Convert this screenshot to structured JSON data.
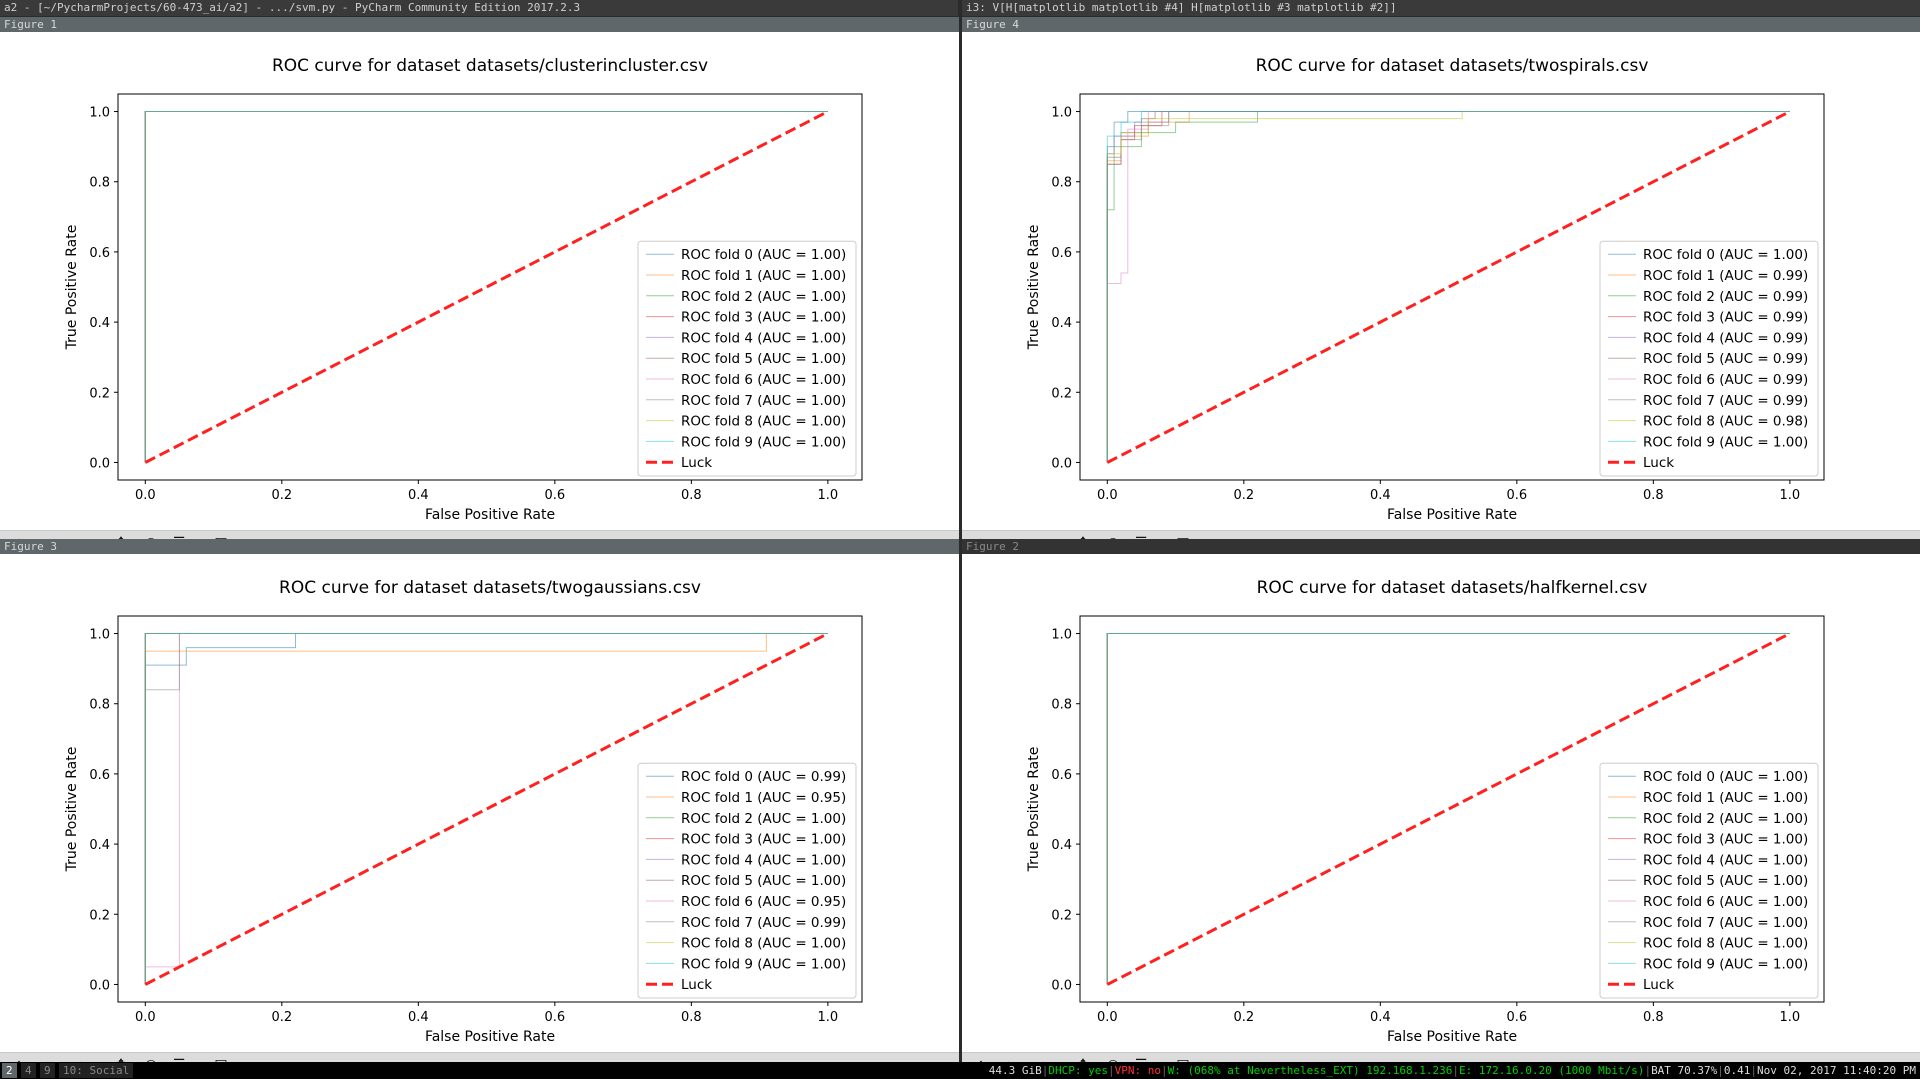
{
  "titlebar_left": "a2 - [~/PycharmProjects/60-473_ai/a2] - .../svm.py - PyCharm Community Edition 2017.2.3",
  "titlebar_right": "i3: V[H[matplotlib matplotlib #4] H[matplotlib #3 matplotlib #2]]",
  "toolbar_icons": [
    "home-icon",
    "back-icon",
    "forward-icon",
    "pan-icon",
    "zoom-icon",
    "configure-subplots-icon",
    "save-icon"
  ],
  "workspaces": [
    "2",
    "4",
    "9",
    "10: Social"
  ],
  "status": {
    "disk": "44.3 GiB",
    "dhcp": "DHCP: yes",
    "vpn": "VPN: no",
    "wifi": "W: (068% at Nevertheless_EXT) 192.168.1.236",
    "eth": "E: 172.16.0.20 (1000 Mbit/s)",
    "bat": "BAT 70.37%",
    "load": "0.41",
    "datetime": "Nov 02, 2017 11:40:20 PM"
  },
  "figures": [
    {
      "window_title": "Figure 1",
      "chart_data": {
        "type": "line",
        "title": "ROC curve for dataset datasets/clusterincluster.csv",
        "xlabel": "False Positive Rate",
        "ylabel": "True Positive Rate",
        "xlim": [
          -0.04,
          1.05
        ],
        "ylim": [
          -0.05,
          1.05
        ],
        "xticks": [
          "0.0",
          "0.2",
          "0.4",
          "0.6",
          "0.8",
          "1.0"
        ],
        "yticks": [
          "0.0",
          "0.2",
          "0.4",
          "0.6",
          "0.8",
          "1.0"
        ],
        "legend_position": "lower right",
        "series": [
          {
            "name": "ROC fold 0 (AUC = 1.00)",
            "color": "#1f77b4",
            "x": [
              0,
              0,
              0,
              1
            ],
            "y": [
              0,
              0.01,
              1,
              1
            ]
          },
          {
            "name": "ROC fold 1 (AUC = 1.00)",
            "color": "#ff7f0e",
            "x": [
              0,
              0,
              0,
              1
            ],
            "y": [
              0,
              0.01,
              1,
              1
            ]
          },
          {
            "name": "ROC fold 2 (AUC = 1.00)",
            "color": "#2ca02c",
            "x": [
              0,
              0,
              0,
              1
            ],
            "y": [
              0,
              0.01,
              1,
              1
            ]
          },
          {
            "name": "ROC fold 3 (AUC = 1.00)",
            "color": "#d62728",
            "x": [
              0,
              0,
              0,
              1
            ],
            "y": [
              0,
              0.01,
              1,
              1
            ]
          },
          {
            "name": "ROC fold 4 (AUC = 1.00)",
            "color": "#9467bd",
            "x": [
              0,
              0,
              0,
              1
            ],
            "y": [
              0,
              0.01,
              1,
              1
            ]
          },
          {
            "name": "ROC fold 5 (AUC = 1.00)",
            "color": "#8c564b",
            "x": [
              0,
              0,
              0,
              1
            ],
            "y": [
              0,
              0.01,
              1,
              1
            ]
          },
          {
            "name": "ROC fold 6 (AUC = 1.00)",
            "color": "#e377c2",
            "x": [
              0,
              0,
              0,
              1
            ],
            "y": [
              0,
              0.01,
              1,
              1
            ]
          },
          {
            "name": "ROC fold 7 (AUC = 1.00)",
            "color": "#7f7f7f",
            "x": [
              0,
              0,
              0,
              1
            ],
            "y": [
              0,
              0.01,
              1,
              1
            ]
          },
          {
            "name": "ROC fold 8 (AUC = 1.00)",
            "color": "#bcbd22",
            "x": [
              0,
              0,
              0,
              1
            ],
            "y": [
              0,
              0.01,
              1,
              1
            ]
          },
          {
            "name": "ROC fold 9 (AUC = 1.00)",
            "color": "#17becf",
            "x": [
              0,
              0,
              0,
              1
            ],
            "y": [
              0,
              0.01,
              1,
              1
            ]
          },
          {
            "name": "Luck",
            "color": "#ff2020",
            "dashed": true,
            "x": [
              0,
              1
            ],
            "y": [
              0,
              1
            ]
          }
        ]
      }
    },
    {
      "window_title": "Figure 4",
      "chart_data": {
        "type": "line",
        "title": "ROC curve for dataset datasets/twospirals.csv",
        "xlabel": "False Positive Rate",
        "ylabel": "True Positive Rate",
        "xlim": [
          -0.04,
          1.05
        ],
        "ylim": [
          -0.05,
          1.05
        ],
        "xticks": [
          "0.0",
          "0.2",
          "0.4",
          "0.6",
          "0.8",
          "1.0"
        ],
        "yticks": [
          "0.0",
          "0.2",
          "0.4",
          "0.6",
          "0.8",
          "1.0"
        ],
        "legend_position": "lower right",
        "series": [
          {
            "name": "ROC fold 0 (AUC = 1.00)",
            "color": "#1f77b4",
            "x": [
              0,
              0,
              0.01,
              0.01,
              0.03,
              0.03,
              1
            ],
            "y": [
              0,
              0.9,
              0.9,
              0.97,
              0.97,
              1,
              1
            ]
          },
          {
            "name": "ROC fold 1 (AUC = 0.99)",
            "color": "#ff7f0e",
            "x": [
              0,
              0,
              0.02,
              0.02,
              0.06,
              0.06,
              0.12,
              0.12,
              1
            ],
            "y": [
              0,
              0.86,
              0.86,
              0.93,
              0.93,
              0.97,
              0.97,
              1,
              1
            ]
          },
          {
            "name": "ROC fold 2 (AUC = 0.99)",
            "color": "#2ca02c",
            "x": [
              0,
              0,
              0.01,
              0.01,
              0.05,
              0.05,
              0.1,
              0.1,
              0.22,
              0.22,
              1
            ],
            "y": [
              0,
              0.72,
              0.72,
              0.9,
              0.9,
              0.94,
              0.94,
              0.97,
              0.97,
              1,
              1
            ]
          },
          {
            "name": "ROC fold 3 (AUC = 0.99)",
            "color": "#d62728",
            "x": [
              0,
              0,
              0.02,
              0.02,
              0.04,
              0.04,
              0.08,
              0.08,
              1
            ],
            "y": [
              0,
              0.85,
              0.85,
              0.92,
              0.92,
              0.96,
              0.96,
              1,
              1
            ]
          },
          {
            "name": "ROC fold 4 (AUC = 0.99)",
            "color": "#9467bd",
            "x": [
              0,
              0,
              0.01,
              0.01,
              0.04,
              0.04,
              0.09,
              0.09,
              1
            ],
            "y": [
              0,
              0.88,
              0.88,
              0.93,
              0.93,
              0.97,
              0.97,
              1,
              1
            ]
          },
          {
            "name": "ROC fold 5 (AUC = 0.99)",
            "color": "#8c564b",
            "x": [
              0,
              0,
              0.02,
              0.02,
              0.05,
              0.05,
              0.07,
              0.07,
              1
            ],
            "y": [
              0,
              0.87,
              0.87,
              0.94,
              0.94,
              0.98,
              0.98,
              1,
              1
            ]
          },
          {
            "name": "ROC fold 6 (AUC = 0.99)",
            "color": "#e377c2",
            "x": [
              0,
              0,
              0.02,
              0.02,
              0.03,
              0.03,
              0.06,
              0.06,
              1
            ],
            "y": [
              0,
              0.51,
              0.51,
              0.54,
              0.54,
              0.95,
              0.95,
              1,
              1
            ]
          },
          {
            "name": "ROC fold 7 (AUC = 0.99)",
            "color": "#7f7f7f",
            "x": [
              0,
              0,
              0.02,
              0.02,
              0.05,
              0.05,
              0.09,
              0.09,
              1
            ],
            "y": [
              0,
              0.85,
              0.85,
              0.92,
              0.92,
              0.96,
              0.96,
              1,
              1
            ]
          },
          {
            "name": "ROC fold 8 (AUC = 0.98)",
            "color": "#bcbd22",
            "x": [
              0,
              0,
              0.02,
              0.02,
              0.06,
              0.06,
              0.52,
              0.52,
              1
            ],
            "y": [
              0,
              0.88,
              0.88,
              0.94,
              0.94,
              0.98,
              0.98,
              1,
              1
            ]
          },
          {
            "name": "ROC fold 9 (AUC = 1.00)",
            "color": "#17becf",
            "x": [
              0,
              0,
              0.02,
              0.02,
              0.05,
              0.05,
              1
            ],
            "y": [
              0,
              0.93,
              0.93,
              0.97,
              0.97,
              1,
              1
            ]
          },
          {
            "name": "Luck",
            "color": "#ff2020",
            "dashed": true,
            "x": [
              0,
              1
            ],
            "y": [
              0,
              1
            ]
          }
        ]
      }
    },
    {
      "window_title": "Figure 3",
      "chart_data": {
        "type": "line",
        "title": "ROC curve for dataset datasets/twogaussians.csv",
        "xlabel": "False Positive Rate",
        "ylabel": "True Positive Rate",
        "xlim": [
          -0.04,
          1.05
        ],
        "ylim": [
          -0.05,
          1.05
        ],
        "xticks": [
          "0.0",
          "0.2",
          "0.4",
          "0.6",
          "0.8",
          "1.0"
        ],
        "yticks": [
          "0.0",
          "0.2",
          "0.4",
          "0.6",
          "0.8",
          "1.0"
        ],
        "legend_position": "lower right",
        "series": [
          {
            "name": "ROC fold 0 (AUC = 0.99)",
            "color": "#1f77b4",
            "x": [
              0,
              0,
              0.06,
              0.06,
              0.22,
              0.22,
              1
            ],
            "y": [
              0,
              0.91,
              0.91,
              0.96,
              0.96,
              1,
              1
            ]
          },
          {
            "name": "ROC fold 1 (AUC = 0.95)",
            "color": "#ff7f0e",
            "x": [
              0,
              0,
              0.91,
              0.91,
              1
            ],
            "y": [
              0,
              0.95,
              0.95,
              1,
              1
            ]
          },
          {
            "name": "ROC fold 2 (AUC = 1.00)",
            "color": "#2ca02c",
            "x": [
              0,
              0,
              1
            ],
            "y": [
              0,
              1,
              1
            ]
          },
          {
            "name": "ROC fold 3 (AUC = 1.00)",
            "color": "#d62728",
            "x": [
              0,
              0,
              1
            ],
            "y": [
              0,
              1,
              1
            ]
          },
          {
            "name": "ROC fold 4 (AUC = 1.00)",
            "color": "#9467bd",
            "x": [
              0,
              0,
              1
            ],
            "y": [
              0,
              1,
              1
            ]
          },
          {
            "name": "ROC fold 5 (AUC = 1.00)",
            "color": "#8c564b",
            "x": [
              0,
              0,
              1
            ],
            "y": [
              0,
              1,
              1
            ]
          },
          {
            "name": "ROC fold 6 (AUC = 0.95)",
            "color": "#e377c2",
            "x": [
              0,
              0,
              0.05,
              0.05,
              1
            ],
            "y": [
              0,
              0.05,
              0.05,
              1,
              1
            ]
          },
          {
            "name": "ROC fold 7 (AUC = 0.99)",
            "color": "#7f7f7f",
            "x": [
              0,
              0,
              0.05,
              0.05,
              1
            ],
            "y": [
              0,
              0.84,
              0.84,
              1,
              1
            ]
          },
          {
            "name": "ROC fold 8 (AUC = 1.00)",
            "color": "#bcbd22",
            "x": [
              0,
              0,
              1
            ],
            "y": [
              0,
              1,
              1
            ]
          },
          {
            "name": "ROC fold 9 (AUC = 1.00)",
            "color": "#17becf",
            "x": [
              0,
              0,
              1
            ],
            "y": [
              0,
              1,
              1
            ]
          },
          {
            "name": "Luck",
            "color": "#ff2020",
            "dashed": true,
            "x": [
              0,
              1
            ],
            "y": [
              0,
              1
            ]
          }
        ]
      }
    },
    {
      "window_title": "Figure 2",
      "chart_data": {
        "type": "line",
        "title": "ROC curve for dataset datasets/halfkernel.csv",
        "xlabel": "False Positive Rate",
        "ylabel": "True Positive Rate",
        "xlim": [
          -0.04,
          1.05
        ],
        "ylim": [
          -0.05,
          1.05
        ],
        "xticks": [
          "0.0",
          "0.2",
          "0.4",
          "0.6",
          "0.8",
          "1.0"
        ],
        "yticks": [
          "0.0",
          "0.2",
          "0.4",
          "0.6",
          "0.8",
          "1.0"
        ],
        "legend_position": "lower right",
        "series": [
          {
            "name": "ROC fold 0 (AUC = 1.00)",
            "color": "#1f77b4",
            "x": [
              0,
              0,
              0,
              1
            ],
            "y": [
              0,
              0.01,
              1,
              1
            ]
          },
          {
            "name": "ROC fold 1 (AUC = 1.00)",
            "color": "#ff7f0e",
            "x": [
              0,
              0,
              0,
              1
            ],
            "y": [
              0,
              0.01,
              1,
              1
            ]
          },
          {
            "name": "ROC fold 2 (AUC = 1.00)",
            "color": "#2ca02c",
            "x": [
              0,
              0,
              0,
              1
            ],
            "y": [
              0,
              0.01,
              1,
              1
            ]
          },
          {
            "name": "ROC fold 3 (AUC = 1.00)",
            "color": "#d62728",
            "x": [
              0,
              0,
              0,
              1
            ],
            "y": [
              0,
              0.01,
              1,
              1
            ]
          },
          {
            "name": "ROC fold 4 (AUC = 1.00)",
            "color": "#9467bd",
            "x": [
              0,
              0,
              0,
              1
            ],
            "y": [
              0,
              0.01,
              1,
              1
            ]
          },
          {
            "name": "ROC fold 5 (AUC = 1.00)",
            "color": "#8c564b",
            "x": [
              0,
              0,
              0,
              1
            ],
            "y": [
              0,
              0.01,
              1,
              1
            ]
          },
          {
            "name": "ROC fold 6 (AUC = 1.00)",
            "color": "#e377c2",
            "x": [
              0,
              0,
              0,
              1
            ],
            "y": [
              0,
              0.01,
              1,
              1
            ]
          },
          {
            "name": "ROC fold 7 (AUC = 1.00)",
            "color": "#7f7f7f",
            "x": [
              0,
              0,
              0,
              1
            ],
            "y": [
              0,
              0.01,
              1,
              1
            ]
          },
          {
            "name": "ROC fold 8 (AUC = 1.00)",
            "color": "#bcbd22",
            "x": [
              0,
              0,
              0,
              1
            ],
            "y": [
              0,
              0.01,
              1,
              1
            ]
          },
          {
            "name": "ROC fold 9 (AUC = 1.00)",
            "color": "#17becf",
            "x": [
              0,
              0,
              0,
              1
            ],
            "y": [
              0,
              0.01,
              1,
              1
            ]
          },
          {
            "name": "Luck",
            "color": "#ff2020",
            "dashed": true,
            "x": [
              0,
              1
            ],
            "y": [
              0,
              1
            ]
          }
        ]
      }
    }
  ]
}
